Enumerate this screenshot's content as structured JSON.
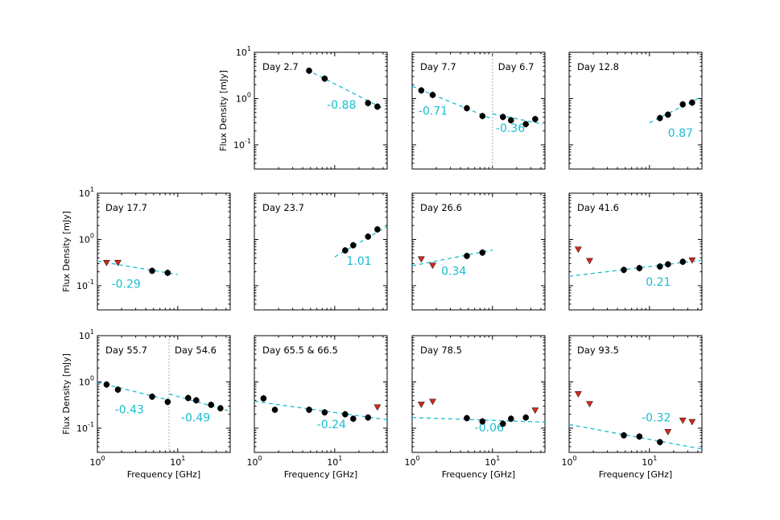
{
  "colors": {
    "fit": "#17bfcf",
    "limit": "#d42a1e",
    "point": "#000000",
    "divider": "#aaaaaa"
  },
  "chart_data": {
    "type": "scatter",
    "layout": "3x4 grid of log-log panels",
    "xlabel": "Frequency [GHz]",
    "ylabel": "Flux Density [mJy]",
    "xscale": "log",
    "yscale": "log",
    "xlim": [
      1,
      45
    ],
    "ylim": [
      0.03,
      10
    ],
    "xticks": [
      {
        "v": 1,
        "base": "10",
        "exp": "0"
      },
      {
        "v": 10,
        "base": "10",
        "exp": "1"
      }
    ],
    "yticks": [
      {
        "v": 0.1,
        "base": "10",
        "exp": "-1"
      },
      {
        "v": 1,
        "base": "10",
        "exp": "0"
      },
      {
        "v": 10,
        "base": "10",
        "exp": "1"
      }
    ],
    "panels": [
      {
        "label": "Day 2.7",
        "label2": "",
        "points": [
          [
            4.8,
            4.0
          ],
          [
            7.5,
            2.7
          ],
          [
            26,
            0.8
          ],
          [
            34,
            0.67
          ]
        ],
        "limits": [],
        "fits": [
          {
            "x0": 4.5,
            "x1": 42,
            "y0": 4.2,
            "slope": -0.88,
            "label": "-0.88",
            "lx": 8,
            "ly": 0.6
          }
        ]
      },
      {
        "label": "Day 7.7",
        "label2": "Day 6.7",
        "divider": 10,
        "points": [
          [
            1.3,
            1.5
          ],
          [
            1.8,
            1.2
          ],
          [
            4.8,
            0.62
          ],
          [
            7.5,
            0.42
          ],
          [
            13.5,
            0.4
          ],
          [
            17,
            0.34
          ],
          [
            26,
            0.28
          ],
          [
            34,
            0.36
          ]
        ],
        "limits": [],
        "fits": [
          {
            "x0": 1,
            "x1": 10,
            "y0": 1.85,
            "slope": -0.71,
            "label": "-0.71",
            "lx": 1.2,
            "ly": 0.45
          },
          {
            "x0": 10,
            "x1": 42,
            "y0": 0.47,
            "slope": -0.36,
            "label": "-0.36",
            "lx": 11,
            "ly": 0.19
          }
        ]
      },
      {
        "label": "Day 12.8",
        "label2": "",
        "points": [
          [
            13.5,
            0.38
          ],
          [
            17,
            0.45
          ],
          [
            26,
            0.75
          ],
          [
            34,
            0.82
          ]
        ],
        "limits": [],
        "fits": [
          {
            "x0": 10,
            "x1": 45,
            "y0": 0.3,
            "slope": 0.87,
            "label": "0.87",
            "lx": 17,
            "ly": 0.15
          }
        ]
      },
      {
        "label": "Day 17.7",
        "label2": "",
        "points": [
          [
            4.8,
            0.21
          ],
          [
            7.5,
            0.19
          ]
        ],
        "limits": [
          [
            1.3,
            0.31
          ],
          [
            1.8,
            0.31
          ]
        ],
        "fits": [
          {
            "x0": 1,
            "x1": 10,
            "y0": 0.34,
            "slope": -0.29,
            "label": "-0.29",
            "lx": 1.5,
            "ly": 0.09
          }
        ]
      },
      {
        "label": "Day 23.7",
        "label2": "",
        "points": [
          [
            13.5,
            0.58
          ],
          [
            17,
            0.75
          ],
          [
            26,
            1.15
          ],
          [
            34,
            1.65
          ]
        ],
        "limits": [],
        "fits": [
          {
            "x0": 10,
            "x1": 45,
            "y0": 0.42,
            "slope": 1.01,
            "label": "1.01",
            "lx": 14,
            "ly": 0.28
          }
        ]
      },
      {
        "label": "Day 26.6",
        "label2": "",
        "points": [
          [
            4.8,
            0.44
          ],
          [
            7.5,
            0.52
          ]
        ],
        "limits": [
          [
            1.3,
            0.37
          ],
          [
            1.8,
            0.27
          ]
        ],
        "fits": [
          {
            "x0": 1,
            "x1": 10,
            "y0": 0.27,
            "slope": 0.34,
            "label": "0.34",
            "lx": 2.3,
            "ly": 0.17
          }
        ]
      },
      {
        "label": "Day 41.6",
        "label2": "",
        "points": [
          [
            4.8,
            0.22
          ],
          [
            7.5,
            0.24
          ],
          [
            13.5,
            0.26
          ],
          [
            17,
            0.29
          ],
          [
            26,
            0.33
          ]
        ],
        "limits": [
          [
            1.3,
            0.6
          ],
          [
            1.8,
            0.34
          ],
          [
            34,
            0.35
          ]
        ],
        "fits": [
          {
            "x0": 1,
            "x1": 45,
            "y0": 0.16,
            "slope": 0.21,
            "label": "0.21",
            "lx": 9,
            "ly": 0.1
          }
        ]
      },
      {
        "label": "Day 55.7",
        "label2": "Day 54.6",
        "divider": 7.8,
        "points": [
          [
            1.3,
            0.88
          ],
          [
            1.8,
            0.68
          ],
          [
            4.8,
            0.48
          ],
          [
            7.5,
            0.37
          ],
          [
            13.5,
            0.45
          ],
          [
            17,
            0.4
          ],
          [
            26,
            0.32
          ],
          [
            34,
            0.27
          ]
        ],
        "limits": [],
        "fits": [
          {
            "x0": 1,
            "x1": 7.8,
            "y0": 0.98,
            "slope": -0.43,
            "label": "-0.43",
            "lx": 1.65,
            "ly": 0.21
          },
          {
            "x0": 7.8,
            "x1": 42,
            "y0": 0.55,
            "slope": -0.49,
            "label": "-0.49",
            "lx": 11,
            "ly": 0.14
          }
        ]
      },
      {
        "label": "Day 65.5 & 66.5",
        "label2": "",
        "points": [
          [
            1.3,
            0.44
          ],
          [
            1.8,
            0.25
          ],
          [
            4.8,
            0.25
          ],
          [
            7.5,
            0.22
          ],
          [
            13.5,
            0.2
          ],
          [
            17,
            0.16
          ],
          [
            26,
            0.17
          ]
        ],
        "limits": [
          [
            34,
            0.28
          ]
        ],
        "fits": [
          {
            "x0": 1,
            "x1": 45,
            "y0": 0.38,
            "slope": -0.24,
            "label": "-0.24",
            "lx": 6,
            "ly": 0.1
          }
        ]
      },
      {
        "label": "Day 78.5",
        "label2": "",
        "points": [
          [
            4.8,
            0.165
          ],
          [
            7.5,
            0.14
          ],
          [
            13.5,
            0.125
          ],
          [
            17,
            0.16
          ],
          [
            26,
            0.17
          ]
        ],
        "limits": [
          [
            1.3,
            0.32
          ],
          [
            1.8,
            0.37
          ],
          [
            34,
            0.24
          ]
        ],
        "fits": [
          {
            "x0": 1,
            "x1": 45,
            "y0": 0.17,
            "slope": -0.06,
            "label": "-0.06",
            "lx": 6,
            "ly": 0.085
          }
        ]
      },
      {
        "label": "Day 93.5",
        "label2": "",
        "points": [
          [
            4.8,
            0.07
          ],
          [
            7.5,
            0.066
          ],
          [
            13.5,
            0.05
          ]
        ],
        "limits": [
          [
            1.3,
            0.54
          ],
          [
            1.8,
            0.33
          ],
          [
            17,
            0.082
          ],
          [
            26,
            0.145
          ],
          [
            34,
            0.135
          ]
        ],
        "fits": [
          {
            "x0": 1,
            "x1": 45,
            "y0": 0.12,
            "slope": -0.32,
            "label": "-0.32",
            "lx": 8,
            "ly": 0.14
          }
        ]
      }
    ]
  }
}
